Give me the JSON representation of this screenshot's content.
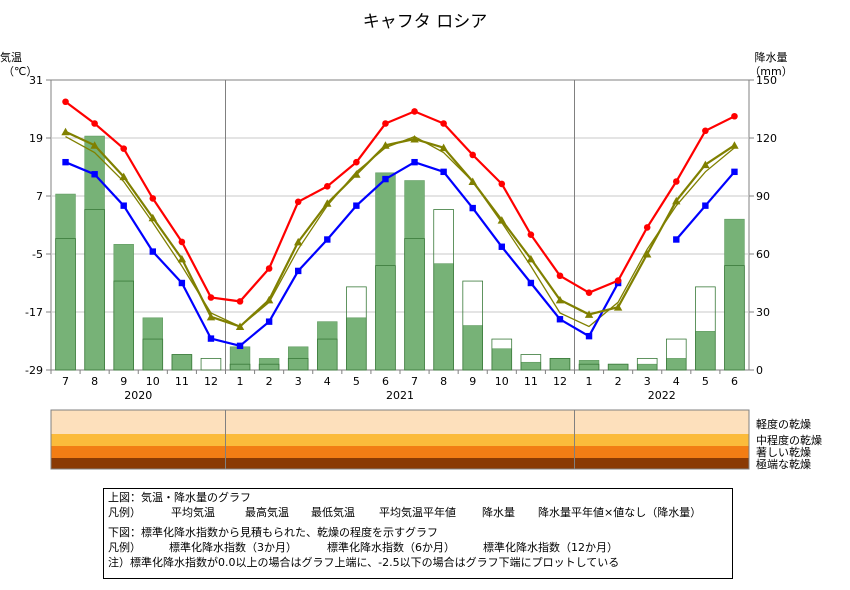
{
  "chart_data": {
    "type": "line",
    "title": "キャフタ ロシア",
    "left_axis": {
      "label_line1": "気温",
      "label_line2": "（℃）",
      "ylim": [
        -29,
        31
      ],
      "ticks": [
        31,
        19,
        7,
        -5,
        -17,
        -29
      ]
    },
    "right_axis": {
      "label_line1": "降水量",
      "label_line2": "（mm）",
      "ylim": [
        0,
        150
      ],
      "ticks": [
        150,
        120,
        90,
        60,
        30,
        0
      ]
    },
    "months": [
      "7",
      "8",
      "9",
      "10",
      "11",
      "12",
      "1",
      "2",
      "3",
      "4",
      "5",
      "6",
      "7",
      "8",
      "9",
      "10",
      "11",
      "12",
      "1",
      "2",
      "3",
      "4",
      "5",
      "6"
    ],
    "years": [
      {
        "label": "2020",
        "start": 0,
        "end": 5
      },
      {
        "label": "2021",
        "start": 6,
        "end": 17
      },
      {
        "label": "2022",
        "start": 18,
        "end": 23
      }
    ],
    "series": [
      {
        "name": "平均気温",
        "color": "#808000",
        "values": [
          20.3,
          17.5,
          11.0,
          2.5,
          -6.0,
          -18.0,
          -20.0,
          -14.5,
          -2.5,
          5.5,
          11.5,
          17.5,
          18.8,
          17.0,
          10.0,
          2.0,
          -6.0,
          -14.5,
          -17.5,
          -16.0,
          -5.0,
          6.0,
          13.5,
          17.5
        ]
      },
      {
        "name": "最高気温",
        "color": "#ff0000",
        "values": [
          26.5,
          22.0,
          16.8,
          6.5,
          -2.5,
          -14.0,
          -14.8,
          -8.0,
          5.8,
          9.0,
          14.0,
          22.0,
          24.5,
          22.0,
          15.5,
          9.5,
          -1.0,
          -9.5,
          -13.0,
          -10.5,
          0.5,
          10.0,
          20.5,
          23.5
        ]
      },
      {
        "name": "最低気温",
        "color": "#0000ff",
        "values": [
          14.0,
          11.5,
          5.0,
          -4.5,
          -11.0,
          -22.5,
          -24.0,
          -19.0,
          -8.5,
          -2.0,
          5.0,
          10.5,
          14.0,
          12.0,
          4.5,
          -3.5,
          -11.0,
          -18.5,
          -22.0,
          -11.0,
          null,
          -2.0,
          5.0,
          12.0
        ]
      },
      {
        "name": "平均気温平年値",
        "color": "#808000",
        "values": [
          19.3,
          16.0,
          10.0,
          1.5,
          -7.5,
          -17.2,
          -20.0,
          -15.0,
          -4.0,
          5.0,
          12.0,
          17.0,
          19.3,
          16.0,
          10.0,
          1.5,
          -7.5,
          -17.2,
          -20.0,
          -15.0,
          -4.0,
          5.0,
          12.0,
          17.0
        ]
      },
      {
        "name": "降水量",
        "color": "#77b277",
        "values": [
          91,
          121,
          65,
          27,
          8,
          0,
          12,
          6,
          12,
          25,
          27,
          102,
          98,
          55,
          23,
          11,
          4,
          6,
          5,
          3,
          3,
          6,
          20,
          78
        ]
      },
      {
        "name": "降水量平年値",
        "color": "#77b277",
        "values": [
          68,
          83,
          46,
          16,
          8,
          6,
          3,
          3,
          6,
          16,
          43,
          54,
          68,
          83,
          46,
          16,
          8,
          6,
          3,
          3,
          6,
          16,
          43,
          54
        ]
      }
    ],
    "drought_bands": [
      "軽度の乾燥",
      "中程度の乾燥",
      "著しい乾燥",
      "極端な乾燥"
    ],
    "drought_colors": [
      "#fde0bc",
      "#fbbb3b",
      "#f27d14",
      "#8a3a04"
    ],
    "legend_placement": "bottom"
  },
  "legend": {
    "top_header": "上図：気温・降水量のグラフ",
    "top_prefix": "凡例）",
    "avg_temp": "平均気温",
    "max_temp": "最高気温",
    "min_temp": "最低気温",
    "avg_normal": "平均気温平年値",
    "precip": "降水量",
    "precip_normal": "降水量平年値",
    "missing": "×値なし（降水量）",
    "bottom_header": "下図：標準化降水指数から見積もられた、乾燥の程度を示すグラフ",
    "bottom_prefix": "凡例）",
    "spi3": "標準化降水指数（3か月）",
    "spi6": "標準化降水指数（6か月）",
    "spi12": "標準化降水指数（12か月）",
    "note": "注）標準化降水指数が0.0以上の場合はグラフ上端に、-2.5以下の場合はグラフ下端にプロットしている"
  }
}
